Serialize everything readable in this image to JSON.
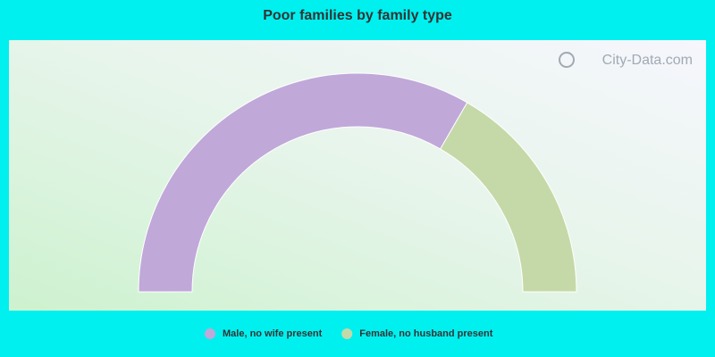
{
  "chart_data": {
    "type": "donut",
    "title": "Poor families by family type",
    "categories": [
      "Male, no wife present",
      "Female, no husband present"
    ],
    "values": [
      66.7,
      33.3
    ],
    "colors": [
      "#c0a8d9",
      "#c5d9a8"
    ],
    "watermark": "City-Data.com"
  }
}
